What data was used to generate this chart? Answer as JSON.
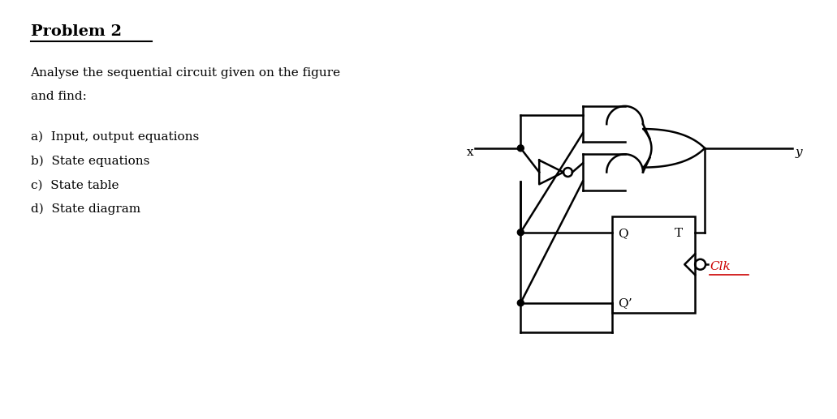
{
  "title": "Problem 2",
  "description_line1": "Analyse the sequential circuit given on the figure",
  "description_line2": "and find:",
  "items": [
    "a)  Input, output equations",
    "b)  State equations",
    "c)  State table",
    "d)  State diagram"
  ],
  "label_x": "x",
  "label_y": "y",
  "label_Q": "Q",
  "label_Qprime": "Q’",
  "label_T": "T",
  "label_Clk": "Clk",
  "bg_color": "#ffffff",
  "text_color": "#000000",
  "clk_color": "#cc0000",
  "line_color": "#000000",
  "line_width": 1.8,
  "fig_width": 10.31,
  "fig_height": 5.17
}
